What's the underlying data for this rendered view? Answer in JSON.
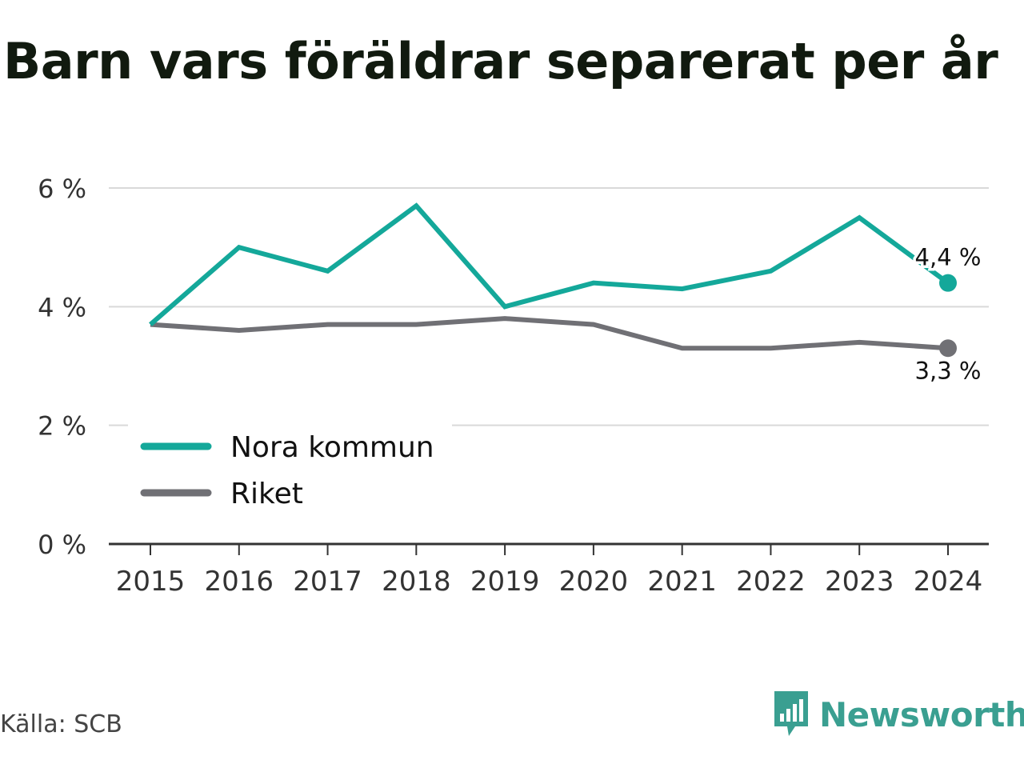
{
  "title": "Barn vars föräldrar separerat per år",
  "source": "Källa: SCB",
  "brand": {
    "name": "Newsworthy",
    "icon": "newsworthy-logo-icon",
    "color": "#3a9f91"
  },
  "chart_data": {
    "type": "line",
    "title": "Barn vars föräldrar separerat per år",
    "categories": [
      "2015",
      "2016",
      "2017",
      "2018",
      "2019",
      "2020",
      "2021",
      "2022",
      "2023",
      "2024"
    ],
    "ylim": [
      0,
      6
    ],
    "yticks": [
      {
        "value": 0,
        "label": "0 %"
      },
      {
        "value": 2,
        "label": "2 %"
      },
      {
        "value": 4,
        "label": "4 %"
      },
      {
        "value": 6,
        "label": "6 %"
      }
    ],
    "grid": true,
    "legend_position": "bottom-left",
    "series": [
      {
        "name": "Nora kommun",
        "color": "#14a89a",
        "values": [
          3.7,
          5.0,
          4.6,
          5.7,
          4.0,
          4.4,
          4.3,
          4.6,
          5.5,
          4.4
        ],
        "end_label": "4,4 %"
      },
      {
        "name": "Riket",
        "color": "#707075",
        "values": [
          3.7,
          3.6,
          3.7,
          3.7,
          3.8,
          3.7,
          3.3,
          3.3,
          3.4,
          3.3
        ],
        "end_label": "3,3 %"
      }
    ]
  }
}
